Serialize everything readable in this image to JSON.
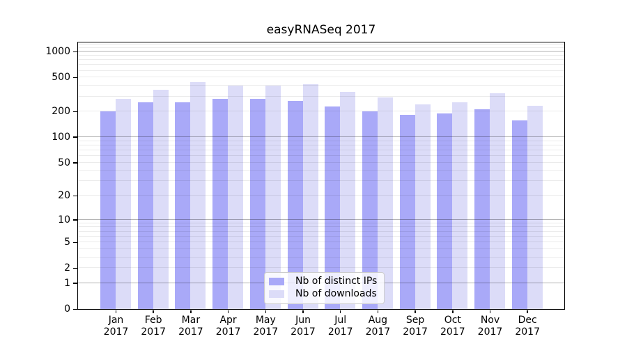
{
  "title": "easyRNASeq 2017",
  "chart_data": {
    "type": "bar",
    "title": "easyRNASeq 2017",
    "yscale": "log1p",
    "ylim": [
      0,
      1280
    ],
    "y_ticks": [
      0,
      1,
      2,
      5,
      10,
      20,
      50,
      100,
      200,
      500,
      1000
    ],
    "grid": "both",
    "legend_position": "lower center",
    "categories": [
      "Jan 2017",
      "Feb 2017",
      "Mar 2017",
      "Apr 2017",
      "May 2017",
      "Jun 2017",
      "Jul 2017",
      "Aug 2017",
      "Sep 2017",
      "Oct 2017",
      "Nov 2017",
      "Dec 2017"
    ],
    "series": [
      {
        "name": "Nb of distinct IPs",
        "color": "#a9a9f8",
        "values": [
          200,
          254,
          254,
          276,
          280,
          262,
          226,
          200,
          180,
          189,
          211,
          155
        ]
      },
      {
        "name": "Nb of downloads",
        "color": "#dcdcf8",
        "values": [
          276,
          355,
          436,
          400,
          400,
          415,
          337,
          288,
          239,
          254,
          325,
          231
        ]
      }
    ]
  }
}
